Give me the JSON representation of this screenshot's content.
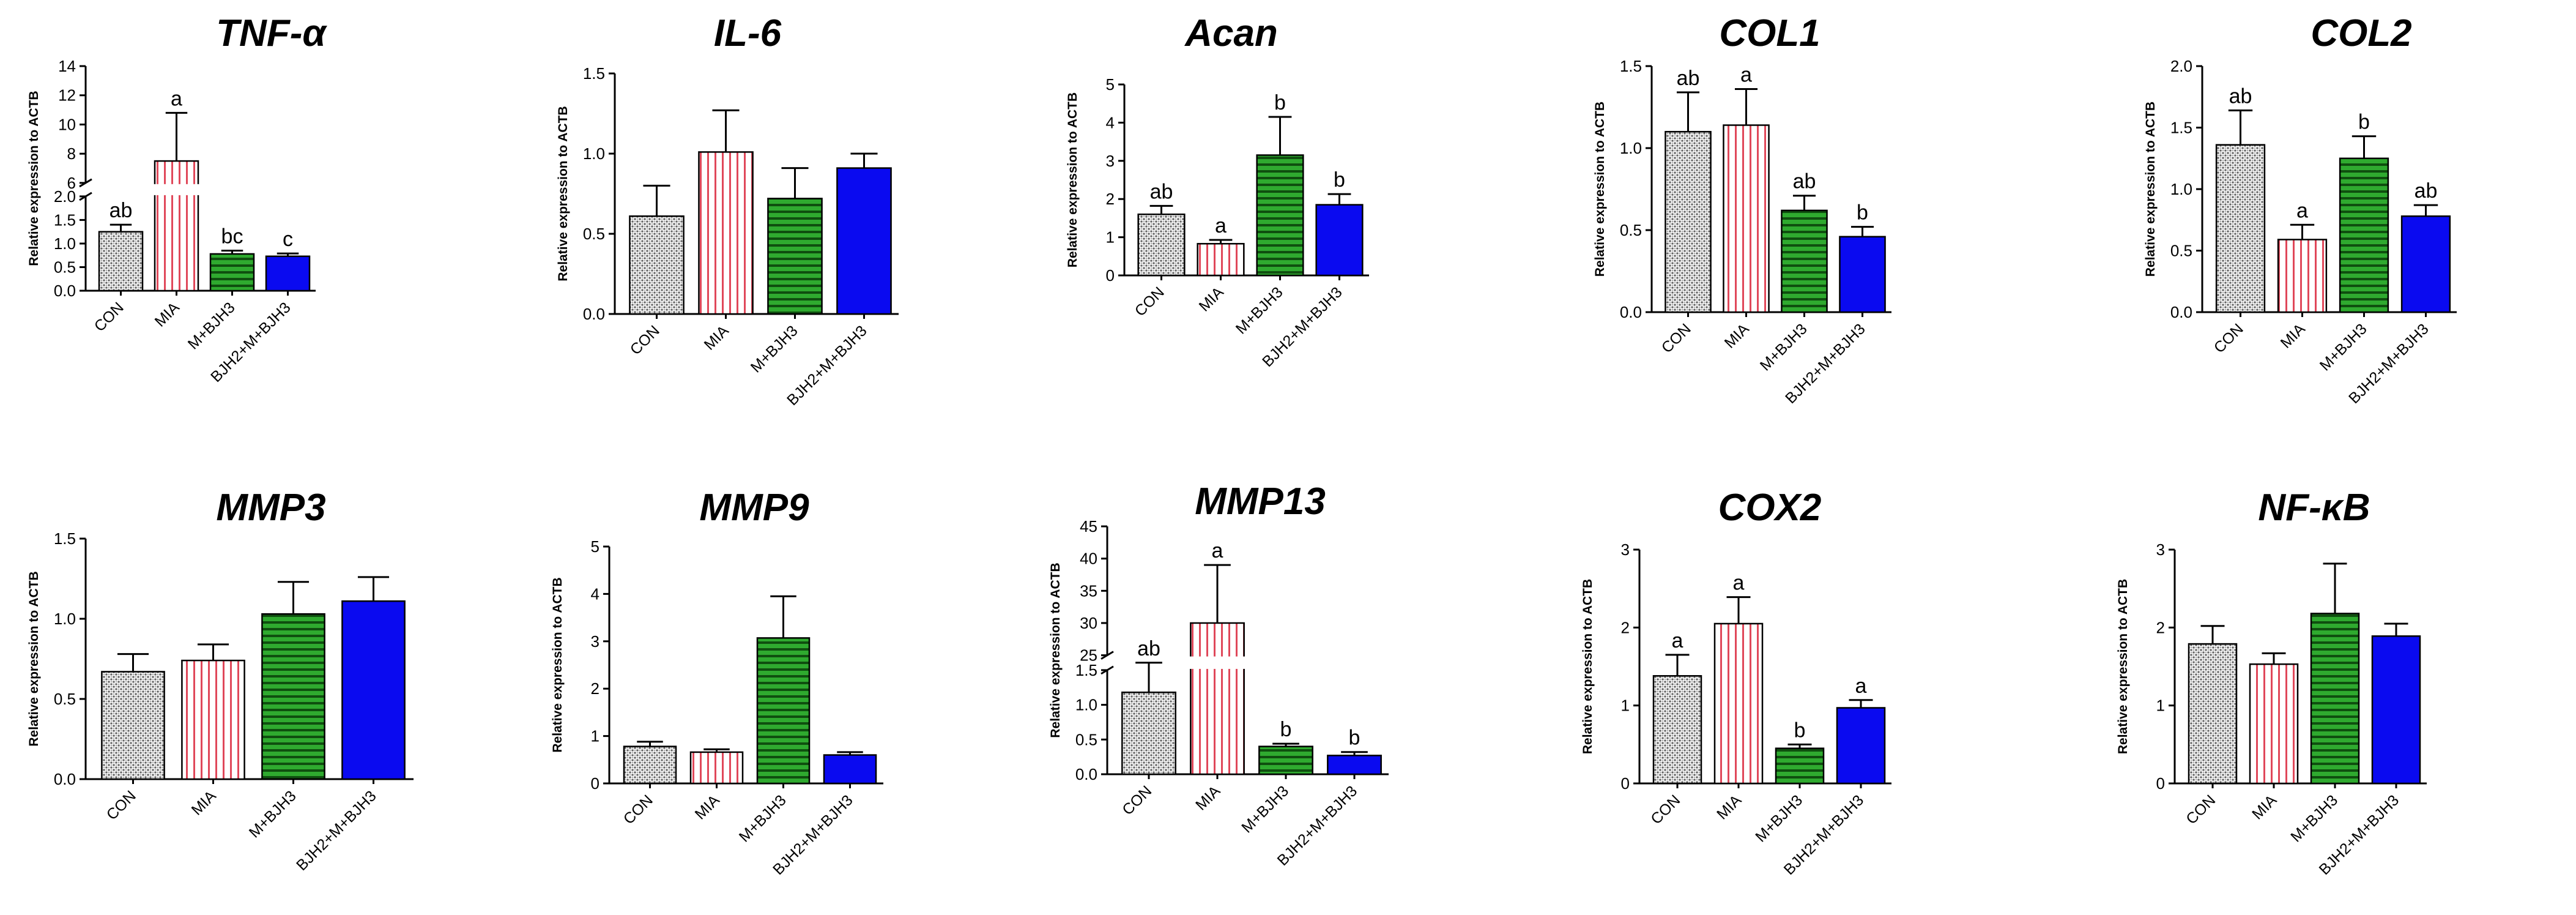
{
  "colors": {
    "con_fill": "#8a8a8a",
    "mia_stripe": "#e0485a",
    "m_bjh3_fill": "#2faa2f",
    "bjh2_fill": "#0a0af0",
    "axis": "#000000"
  },
  "categories": [
    "CON",
    "MIA",
    "M+BJH3",
    "BJH2+M+BJH3"
  ],
  "chart_data": [
    {
      "type": "bar",
      "title": "TNF-α",
      "ylabel": "Relative expression to ACTB",
      "categories": [
        "CON",
        "MIA",
        "M+BJH3",
        "BJH2+M+BJH3"
      ],
      "values": [
        1.25,
        7.5,
        0.78,
        0.73
      ],
      "errors": [
        0.15,
        3.3,
        0.07,
        0.06
      ],
      "significance": [
        "ab",
        "a",
        "bc",
        "c"
      ],
      "ylim": [
        0,
        14
      ],
      "broken_axis": {
        "lower": [
          0,
          2.0
        ],
        "upper": [
          6,
          14
        ]
      },
      "yticks": [
        "0.0",
        "0.5",
        "1.0",
        "1.5",
        "2.0",
        "6",
        "8",
        "10",
        "12",
        "14"
      ]
    },
    {
      "type": "bar",
      "title": "IL-6",
      "ylabel": "Relative expression to ACTB",
      "categories": [
        "CON",
        "MIA",
        "M+BJH3",
        "BJH2+M+BJH3"
      ],
      "values": [
        0.61,
        1.01,
        0.72,
        0.91
      ],
      "errors": [
        0.19,
        0.26,
        0.19,
        0.09
      ],
      "significance": [
        "",
        "",
        "",
        ""
      ],
      "ylim": [
        0,
        1.5
      ],
      "yticks": [
        "0.0",
        "0.5",
        "1.0",
        "1.5"
      ]
    },
    {
      "type": "bar",
      "title": "Acan",
      "ylabel": "Relative expression to ACTB",
      "categories": [
        "CON",
        "MIA",
        "M+BJH3",
        "BJH2+M+BJH3"
      ],
      "values": [
        1.6,
        0.83,
        3.15,
        1.85
      ],
      "errors": [
        0.22,
        0.1,
        1.0,
        0.28
      ],
      "significance": [
        "ab",
        "a",
        "b",
        "b"
      ],
      "ylim": [
        0,
        5
      ],
      "yticks": [
        "0",
        "1",
        "2",
        "3",
        "4",
        "5"
      ]
    },
    {
      "type": "bar",
      "title": "COL1",
      "ylabel": "Relative expression to ACTB",
      "categories": [
        "CON",
        "MIA",
        "M+BJH3",
        "BJH2+M+BJH3"
      ],
      "values": [
        1.1,
        1.14,
        0.62,
        0.46
      ],
      "errors": [
        0.24,
        0.22,
        0.09,
        0.06
      ],
      "significance": [
        "ab",
        "a",
        "ab",
        "b"
      ],
      "ylim": [
        0,
        1.5
      ],
      "yticks": [
        "0.0",
        "0.5",
        "1.0",
        "1.5"
      ]
    },
    {
      "type": "bar",
      "title": "COL2",
      "ylabel": "Relative expression to ACTB",
      "categories": [
        "CON",
        "MIA",
        "M+BJH3",
        "BJH2+M+BJH3"
      ],
      "values": [
        1.36,
        0.59,
        1.25,
        0.78
      ],
      "errors": [
        0.28,
        0.12,
        0.18,
        0.09
      ],
      "significance": [
        "ab",
        "a",
        "b",
        "ab"
      ],
      "ylim": [
        0,
        2.0
      ],
      "yticks": [
        "0.0",
        "0.5",
        "1.0",
        "1.5",
        "2.0"
      ]
    },
    {
      "type": "bar",
      "title": "MMP3",
      "ylabel": "Relative expression to ACTB",
      "categories": [
        "CON",
        "MIA",
        "M+BJH3",
        "BJH2+M+BJH3"
      ],
      "values": [
        0.67,
        0.74,
        1.03,
        1.11
      ],
      "errors": [
        0.11,
        0.1,
        0.2,
        0.15
      ],
      "significance": [
        "",
        "",
        "",
        ""
      ],
      "ylim": [
        0,
        1.5
      ],
      "yticks": [
        "0.0",
        "0.5",
        "1.0",
        "1.5"
      ]
    },
    {
      "type": "bar",
      "title": "MMP9",
      "ylabel": "Relative expression to ACTB",
      "categories": [
        "CON",
        "MIA",
        "M+BJH3",
        "BJH2+M+BJH3"
      ],
      "values": [
        0.78,
        0.66,
        3.07,
        0.6
      ],
      "errors": [
        0.1,
        0.06,
        0.88,
        0.06
      ],
      "significance": [
        "",
        "",
        "",
        ""
      ],
      "ylim": [
        0,
        5
      ],
      "yticks": [
        "0",
        "1",
        "2",
        "3",
        "4",
        "5"
      ]
    },
    {
      "type": "bar",
      "title": "MMP13",
      "ylabel": "Relative expression to ACTB",
      "categories": [
        "CON",
        "MIA",
        "M+BJH3",
        "BJH2+M+BJH3"
      ],
      "values": [
        1.18,
        30.0,
        0.4,
        0.27
      ],
      "errors": [
        0.48,
        9.0,
        0.04,
        0.05
      ],
      "significance": [
        "ab",
        "a",
        "b",
        "b"
      ],
      "ylim": [
        0,
        45
      ],
      "broken_axis": {
        "lower": [
          0,
          1.5
        ],
        "upper": [
          25,
          45
        ]
      },
      "yticks": [
        "0.0",
        "0.5",
        "1.0",
        "1.5",
        "25",
        "30",
        "35",
        "40",
        "45"
      ]
    },
    {
      "type": "bar",
      "title": "COX2",
      "ylabel": "Relative expression to ACTB",
      "categories": [
        "CON",
        "MIA",
        "M+BJH3",
        "BJH2+M+BJH3"
      ],
      "values": [
        1.38,
        2.05,
        0.45,
        0.97
      ],
      "errors": [
        0.27,
        0.34,
        0.05,
        0.1
      ],
      "significance": [
        "a",
        "a",
        "b",
        "a"
      ],
      "ylim": [
        0,
        3
      ],
      "yticks": [
        "0",
        "1",
        "2",
        "3"
      ]
    },
    {
      "type": "bar",
      "title": "NF-κB",
      "ylabel": "Relative expression to ACTB",
      "categories": [
        "CON",
        "MIA",
        "M+BJH3",
        "BJH2+M+BJH3"
      ],
      "values": [
        1.79,
        1.53,
        2.18,
        1.89
      ],
      "errors": [
        0.23,
        0.14,
        0.64,
        0.16
      ],
      "significance": [
        "",
        "",
        "",
        ""
      ],
      "ylim": [
        0,
        3
      ],
      "yticks": [
        "0",
        "1",
        "2",
        "3"
      ]
    }
  ]
}
